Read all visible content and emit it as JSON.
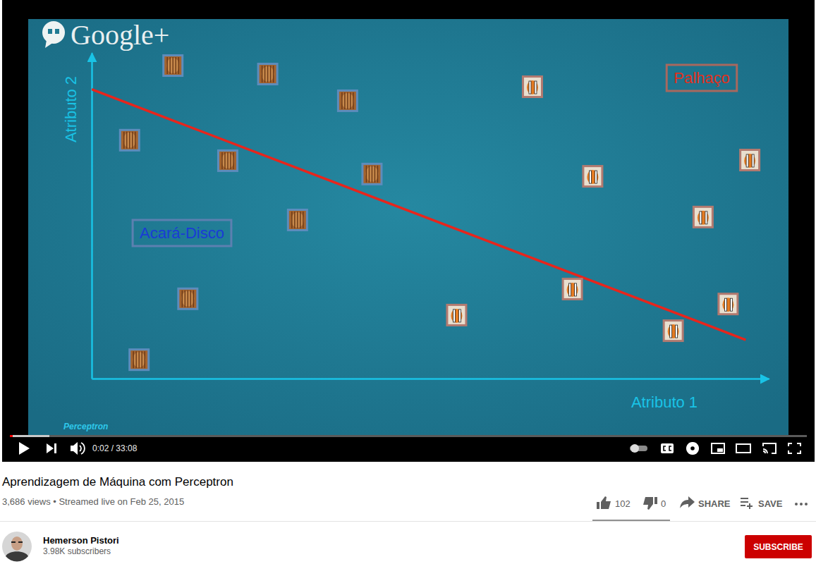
{
  "chart_data": {
    "type": "scatter",
    "x_label": "Atributo 1",
    "y_label": "Atributo 2",
    "xlim": [
      0,
      100
    ],
    "ylim": [
      0,
      100
    ],
    "tick_labels": false,
    "grid": false,
    "series": [
      {
        "name": "Acará-Disco",
        "color": "#1a3bd6",
        "marker": "disco",
        "x": [
          12.0,
          26.0,
          37.8,
          5.6,
          20.1,
          41.4,
          30.4,
          14.2,
          7.0
        ],
        "values": [
          96.1,
          93.5,
          85.3,
          73.2,
          66.9,
          62.8,
          48.7,
          24.5,
          5.8
        ]
      },
      {
        "name": "Palhaço",
        "color": "#e0301e",
        "marker": "clown",
        "x": [
          65.1,
          97.2,
          74.0,
          90.3,
          71.0,
          53.9,
          94.0,
          85.9
        ],
        "values": [
          89.6,
          67.1,
          62.1,
          49.6,
          27.5,
          19.5,
          22.9,
          14.7
        ]
      }
    ],
    "decision_boundary": {
      "color": "#e8251c",
      "x": [
        0,
        96.6
      ],
      "values": [
        88.8,
        11.9
      ]
    }
  },
  "video": {
    "logo": "Google+",
    "caption": "Perceptron",
    "time": "0:02 / 33:08"
  },
  "info": {
    "title": "Aprendizagem de Máquina com Perceptron",
    "meta": "3,686 views • Streamed live on Feb 25, 2015",
    "likes": "102",
    "dislikes": "0",
    "share": "SHARE",
    "save": "SAVE"
  },
  "channel": {
    "name": "Hemerson Pistori",
    "subscribers": "3.98K subscribers",
    "subscribe": "SUBSCRIBE"
  }
}
